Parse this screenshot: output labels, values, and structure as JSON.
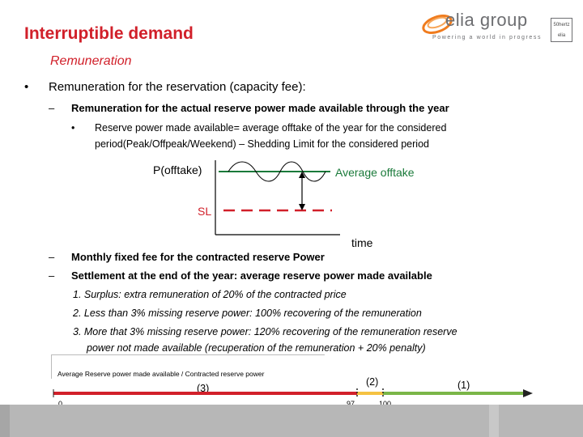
{
  "header": {
    "title": "Interruptible demand",
    "subtitle": "Remuneration",
    "logo": {
      "name": "elia group",
      "tagline": "Powering a world in progress",
      "badge_lines": [
        "50hertz",
        "elia"
      ],
      "accent": "#f07c1e"
    }
  },
  "content": {
    "main_bullet": "Remuneration for the reservation (capacity fee):",
    "dash1": "Remuneration for the actual reserve power made available through the year",
    "sub_bullet_line1": "Reserve power made available= average offtake of the year for the considered",
    "sub_bullet_line2": "period(Peak/Offpeak/Weekend) – Shedding Limit for the considered period",
    "dash2": "Monthly fixed fee for the contracted reserve Power",
    "dash3": "Settlement at the end of the year: average reserve power made available",
    "numbered": [
      "1.  Surplus: extra remuneration of 20% of the contracted price",
      "2.  Less than 3% missing reserve power: 100% recovering of the remuneration",
      "3.  More that 3% missing reserve power: 120% recovering of the remuneration reserve",
      "power not made available (recuperation of the remuneration + 20% penalty)"
    ],
    "bullet_symbol": "•",
    "dash_symbol": "–"
  },
  "diagram": {
    "y_label": "P(offtake)",
    "avg_label": "Average offtake",
    "sl_label": "SL",
    "x_label": "time",
    "colors": {
      "avg": "#1a7a3a",
      "sl": "#d1202a",
      "arrow": "#000000"
    }
  },
  "scale": {
    "caption": "Average Reserve power made available / Contracted reserve power",
    "segments": [
      {
        "label": "(3)",
        "from": 0,
        "to": 97,
        "color": "#d1202a"
      },
      {
        "label": "(2)",
        "from": 97,
        "to": 100,
        "color": "#f5c242"
      },
      {
        "label": "(1)",
        "from": 100,
        "to": null,
        "color": "#7ab648"
      }
    ],
    "ticks": [
      "0",
      "97",
      "100"
    ]
  },
  "footer": {
    "color": "#b7b7b7"
  }
}
